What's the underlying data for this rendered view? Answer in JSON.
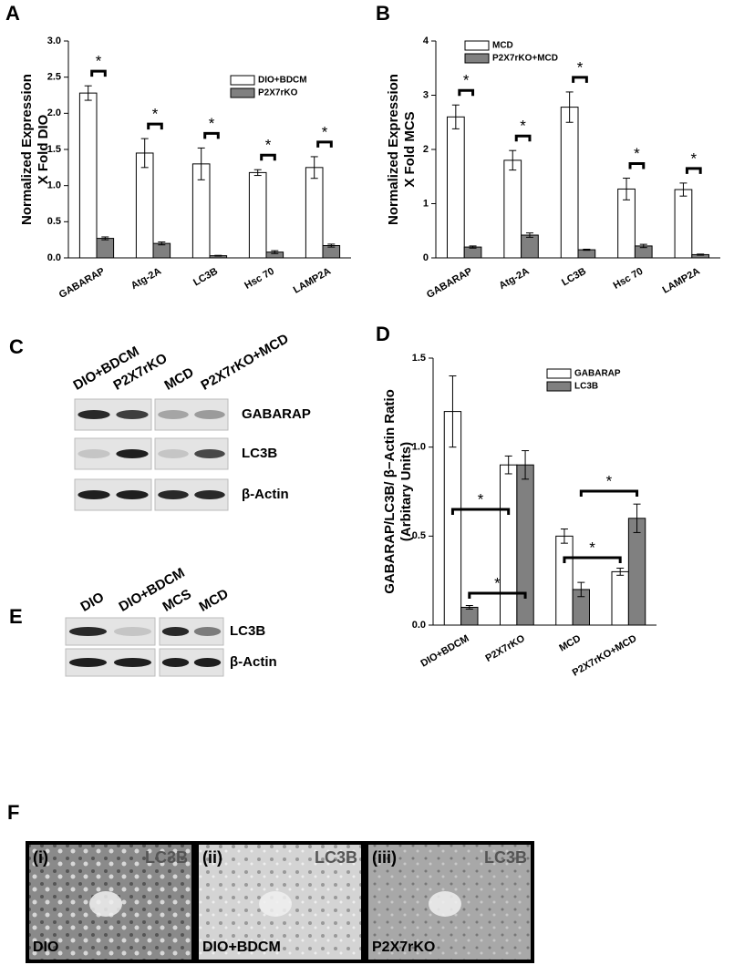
{
  "chart_data": [
    {
      "type": "bar",
      "panel_label": "A",
      "ylabel": [
        "Normalized Expression",
        "X Fold DIO"
      ],
      "categories": [
        "GABARAP",
        "Atg-2A",
        "LC3B",
        "Hsc 70",
        "LAMP2A"
      ],
      "series": [
        {
          "name": "DIO+BDCM",
          "color": "#ffffff",
          "values": [
            2.28,
            1.45,
            1.3,
            1.18,
            1.25
          ],
          "errors": [
            0.1,
            0.2,
            0.22,
            0.04,
            0.15
          ]
        },
        {
          "name": "P2X7rKO",
          "color": "#808080",
          "values": [
            0.27,
            0.2,
            0.03,
            0.08,
            0.17
          ],
          "errors": [
            0.02,
            0.02,
            0.005,
            0.02,
            0.02
          ]
        }
      ],
      "ylim": [
        0,
        3
      ],
      "yticks": [
        {
          "value": 0,
          "label": "0.0"
        },
        0.5,
        {
          "value": 1,
          "label": "1.0"
        },
        1.5,
        {
          "value": 2,
          "label": "2.0"
        },
        2.5,
        {
          "value": 3,
          "label": "3.0"
        }
      ],
      "significance": [
        "*",
        "*",
        "*",
        "*",
        "*"
      ]
    },
    {
      "type": "bar",
      "panel_label": "B",
      "ylabel": [
        "Normalized Expression",
        "X Fold MCS"
      ],
      "categories": [
        "GABARAP",
        "Atg-2A",
        "LC3B",
        "Hsc 70",
        "LAMP2A"
      ],
      "series": [
        {
          "name": "MCD",
          "color": "#ffffff",
          "values": [
            2.6,
            1.8,
            2.78,
            1.27,
            1.26
          ],
          "errors": [
            0.22,
            0.18,
            0.28,
            0.2,
            0.12
          ]
        },
        {
          "name": "P2X7rKO+MCD",
          "color": "#808080",
          "values": [
            0.2,
            0.42,
            0.15,
            0.22,
            0.06
          ],
          "errors": [
            0.02,
            0.04,
            0.01,
            0.03,
            0.01
          ]
        }
      ],
      "ylim": [
        0,
        4
      ],
      "yticks": [
        0,
        1,
        2,
        3,
        4
      ],
      "significance": [
        "*",
        "*",
        "*",
        "*",
        "*"
      ]
    },
    {
      "type": "bar",
      "panel_label": "D",
      "ylabel": [
        "GABARAP/LC3B/ β−Actin Ratio",
        "(Arbitary Units)"
      ],
      "categories": [
        "DIO+BDCM",
        "P2X7rKO",
        "MCD",
        "P2X7rKO+MCD"
      ],
      "series": [
        {
          "name": "GABARAP",
          "color": "#ffffff",
          "values": [
            1.2,
            0.9,
            0.5,
            0.3
          ],
          "errors": [
            0.2,
            0.05,
            0.04,
            0.02
          ]
        },
        {
          "name": "LC3B",
          "color": "#808080",
          "values": [
            0.1,
            0.9,
            0.2,
            0.6
          ],
          "errors": [
            0.01,
            0.08,
            0.04,
            0.08
          ]
        }
      ],
      "ylim": [
        0,
        1.5
      ],
      "yticks": [
        {
          "value": 0,
          "label": "0.0"
        },
        0.5,
        {
          "value": 1,
          "label": "1.0"
        },
        1.5
      ],
      "significance": [
        "*",
        "*",
        "*",
        "*"
      ]
    }
  ],
  "blot_c": {
    "panel_label": "C",
    "lanes": [
      "DIO+BDCM",
      "P2X7rKO",
      "MCD",
      "P2X7rKO+MCD"
    ],
    "rows": [
      "GABARAP",
      "LC3B",
      "β-Actin"
    ]
  },
  "blot_e": {
    "panel_label": "E",
    "lanes": [
      "DIO",
      "DIO+BDCM",
      "MCS",
      "MCD"
    ],
    "rows": [
      "LC3B",
      "β-Actin"
    ]
  },
  "micrographs": {
    "panel_label": "F",
    "images": [
      {
        "index": "(i)",
        "stain": "LC3B",
        "group": "DIO"
      },
      {
        "index": "(ii)",
        "stain": "LC3B",
        "group": "DIO+BDCM"
      },
      {
        "index": "(iii)",
        "stain": "LC3B",
        "group": "P2X7rKO"
      }
    ]
  }
}
